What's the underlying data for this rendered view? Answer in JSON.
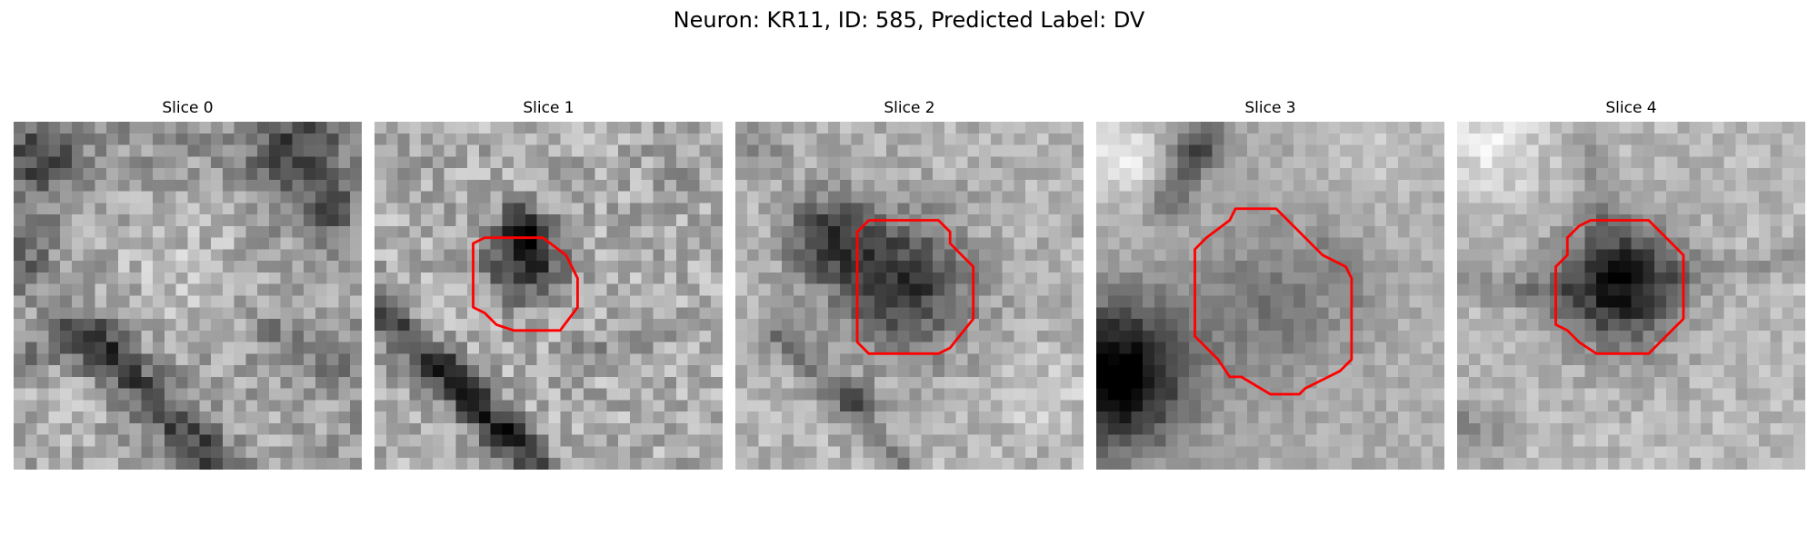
{
  "figure": {
    "title": "Neuron: KR11, ID: 585, Predicted Label: DV"
  },
  "panels": [
    {
      "title": "Slice 0",
      "contour": null,
      "blobs": [
        {
          "cx": 2,
          "cy": 3,
          "r": 4.5,
          "v": -0.35
        },
        {
          "cx": 13,
          "cy": 1,
          "r": 5,
          "v": -0.05
        },
        {
          "cx": 24,
          "cy": 2,
          "r": 5,
          "v": -0.35
        },
        {
          "cx": 27,
          "cy": 8,
          "r": 3,
          "v": -0.3
        },
        {
          "cx": 1,
          "cy": 12,
          "r": 3,
          "v": -0.2
        },
        {
          "cx": 14,
          "cy": 12,
          "r": 8,
          "v": 0.12
        },
        {
          "cx": 21,
          "cy": 27,
          "r": 4,
          "v": 0.05
        },
        {
          "cx": 4,
          "cy": 26,
          "r": 5,
          "v": 0.1
        }
      ],
      "lines": [
        {
          "x1": 6,
          "y1": 18,
          "x2": 18,
          "y2": 30,
          "w": 2.2,
          "v": -0.35
        },
        {
          "x1": 0,
          "y1": 20,
          "x2": 8,
          "y2": 19,
          "w": 1.8,
          "v": -0.15
        },
        {
          "x1": 22,
          "y1": 18,
          "x2": 29,
          "y2": 22,
          "w": 1.6,
          "v": -0.15
        }
      ],
      "base": 0.62,
      "noise": 0.15
    },
    {
      "title": "Slice 1",
      "contour": [
        [
          8.5,
          10.5
        ],
        [
          9.5,
          10.0
        ],
        [
          14.5,
          10.0
        ],
        [
          16.5,
          11.5
        ],
        [
          17.5,
          13.5
        ],
        [
          17.5,
          16.0
        ],
        [
          16.0,
          18.0
        ],
        [
          12.0,
          18.0
        ],
        [
          10.5,
          17.5
        ],
        [
          9.5,
          16.5
        ],
        [
          8.5,
          16.0
        ]
      ],
      "blobs": [
        {
          "cx": 13,
          "cy": 12,
          "r": 3.6,
          "v": -0.55
        },
        {
          "cx": 12.5,
          "cy": 9,
          "r": 2.2,
          "v": -0.35
        },
        {
          "cx": 2,
          "cy": 4,
          "r": 3,
          "v": -0.1
        },
        {
          "cx": 26,
          "cy": 3,
          "r": 3,
          "v": -0.1
        }
      ],
      "lines": [
        {
          "x1": 0,
          "y1": 16,
          "x2": 14,
          "y2": 30,
          "w": 2.0,
          "v": -0.38
        },
        {
          "x1": 6,
          "y1": 21,
          "x2": 12,
          "y2": 27,
          "w": 1.5,
          "v": -0.2
        },
        {
          "x1": 18,
          "y1": 20,
          "x2": 29,
          "y2": 17,
          "w": 1.4,
          "v": -0.12
        }
      ],
      "base": 0.68,
      "noise": 0.16
    },
    {
      "title": "Slice 2",
      "contour": [
        [
          10.5,
          9.5
        ],
        [
          11.5,
          8.5
        ],
        [
          17.5,
          8.5
        ],
        [
          18.5,
          9.5
        ],
        [
          18.5,
          10.5
        ],
        [
          19.5,
          11.5
        ],
        [
          20.5,
          12.5
        ],
        [
          20.5,
          17.0
        ],
        [
          18.5,
          19.5
        ],
        [
          17.5,
          20.0
        ],
        [
          14.0,
          20.0
        ],
        [
          11.5,
          20.0
        ],
        [
          10.5,
          19.0
        ]
      ],
      "blobs": [
        {
          "cx": 14.5,
          "cy": 14,
          "r": 6.5,
          "v": -0.5
        },
        {
          "cx": 8,
          "cy": 10,
          "r": 4,
          "v": -0.45
        },
        {
          "cx": 2,
          "cy": 1,
          "r": 3,
          "v": -0.2
        },
        {
          "cx": 27,
          "cy": 24,
          "r": 4,
          "v": 0.1
        }
      ],
      "lines": [
        {
          "x1": 3,
          "y1": 18,
          "x2": 10,
          "y2": 24,
          "w": 1.8,
          "v": -0.2
        },
        {
          "x1": 10,
          "y1": 24,
          "x2": 14,
          "y2": 30,
          "w": 1.6,
          "v": -0.2
        }
      ],
      "base": 0.7,
      "noise": 0.12
    },
    {
      "title": "Slice 3",
      "contour": [
        [
          8.5,
          11.0
        ],
        [
          9.5,
          10.0
        ],
        [
          11.5,
          8.5
        ],
        [
          12.0,
          7.5
        ],
        [
          15.5,
          7.5
        ],
        [
          16.5,
          8.5
        ],
        [
          19.5,
          11.5
        ],
        [
          21.5,
          12.5
        ],
        [
          22.0,
          13.5
        ],
        [
          22.0,
          20.5
        ],
        [
          21.0,
          21.5
        ],
        [
          20.0,
          22.0
        ],
        [
          18.0,
          23.0
        ],
        [
          17.5,
          23.5
        ],
        [
          15.0,
          23.5
        ],
        [
          12.5,
          22.0
        ],
        [
          11.5,
          22.0
        ],
        [
          10.5,
          20.5
        ],
        [
          9.5,
          19.5
        ],
        [
          8.5,
          18.5
        ]
      ],
      "blobs": [
        {
          "cx": 15,
          "cy": 15.5,
          "r": 8,
          "v": -0.2
        },
        {
          "cx": 1.5,
          "cy": 22,
          "r": 7,
          "v": -0.75
        },
        {
          "cx": 2.5,
          "cy": 3,
          "r": 4,
          "v": 0.25
        },
        {
          "cx": 8,
          "cy": 2,
          "r": 3,
          "v": -0.2
        },
        {
          "cx": 24,
          "cy": 3,
          "r": 5,
          "v": 0.1
        }
      ],
      "lines": [
        {
          "x1": 6,
          "y1": 7,
          "x2": 10,
          "y2": 1,
          "w": 1.6,
          "v": -0.25
        },
        {
          "x1": 20,
          "y1": 10,
          "x2": 23,
          "y2": 15,
          "w": 1.2,
          "v": -0.1
        }
      ],
      "base": 0.68,
      "noise": 0.08
    },
    {
      "title": "Slice 4",
      "contour": [
        [
          8.5,
          12.5
        ],
        [
          9.5,
          11.5
        ],
        [
          9.5,
          10.0
        ],
        [
          10.5,
          9.0
        ],
        [
          11.5,
          8.5
        ],
        [
          16.5,
          8.5
        ],
        [
          17.5,
          9.5
        ],
        [
          19.5,
          11.5
        ],
        [
          19.5,
          17.0
        ],
        [
          18.5,
          18.0
        ],
        [
          17.5,
          19.0
        ],
        [
          16.5,
          20.0
        ],
        [
          12.0,
          20.0
        ],
        [
          10.5,
          19.0
        ],
        [
          9.5,
          18.0
        ],
        [
          8.5,
          17.5
        ]
      ],
      "blobs": [
        {
          "cx": 14,
          "cy": 14,
          "r": 5.2,
          "v": -0.55
        },
        {
          "cx": 14,
          "cy": 14,
          "r": 7.5,
          "v": -0.15
        },
        {
          "cx": 3,
          "cy": 2,
          "r": 4.5,
          "v": 0.2
        },
        {
          "cx": 1,
          "cy": 27,
          "r": 3,
          "v": -0.2
        }
      ],
      "lines": [
        {
          "x1": 0,
          "y1": 14,
          "x2": 9,
          "y2": 15,
          "w": 1.4,
          "v": -0.2
        },
        {
          "x1": 19,
          "y1": 13,
          "x2": 29,
          "y2": 12,
          "w": 1.2,
          "v": -0.12
        },
        {
          "x1": 11,
          "y1": 1,
          "x2": 12,
          "y2": 8,
          "w": 1.2,
          "v": -0.15
        }
      ],
      "base": 0.72,
      "noise": 0.1
    }
  ],
  "colors": {
    "contour": "#ff0000",
    "colormap": "gray"
  }
}
